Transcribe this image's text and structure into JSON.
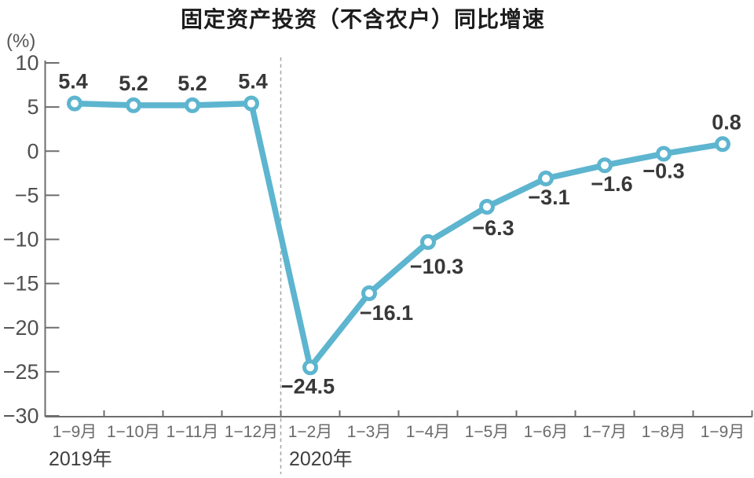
{
  "title": "固定资产投资（不含农户）同比增速",
  "unit_label": "(%)",
  "chart_data": {
    "type": "line",
    "title": "固定资产投资（不含农户）同比增速",
    "ylabel": "(%)",
    "categories": [
      "1−9月",
      "1−10月",
      "1−11月",
      "1−12月",
      "1−2月",
      "1−3月",
      "1−4月",
      "1−5月",
      "1−6月",
      "1−7月",
      "1−8月",
      "1−9月"
    ],
    "series": [
      {
        "name": "固定资产投资（不含农户）同比增速",
        "values": [
          5.4,
          5.2,
          5.2,
          5.4,
          -24.5,
          -16.1,
          -10.3,
          -6.3,
          -3.1,
          -1.6,
          -0.3,
          0.8
        ]
      }
    ],
    "data_labels": [
      "5.4",
      "5.2",
      "5.2",
      "5.4",
      "−24.5",
      "−16.1",
      "−10.3",
      "−6.3",
      "−3.1",
      "−1.6",
      "−0.3",
      "0.8"
    ],
    "y_ticks": [
      10,
      5,
      0,
      -5,
      -10,
      -15,
      -20,
      -25,
      -30
    ],
    "y_tick_labels": [
      "10",
      "5",
      "0",
      "−5",
      "−10",
      "−15",
      "−20",
      "−25",
      "−30"
    ],
    "ylim": [
      -30,
      10
    ],
    "year_groups": [
      {
        "label": "2019年",
        "start_index": 0,
        "end_index": 3
      },
      {
        "label": "2020年",
        "start_index": 4,
        "end_index": 11
      }
    ],
    "divider_after_index": 3,
    "grid": false,
    "legend": "none",
    "colors": {
      "line": "#5db5cf",
      "marker_fill": "#ffffff",
      "axis": "#6e6e6e",
      "divider": "#a8a8a8",
      "y_tick_text": "#4f4f4f",
      "x_tick_text": "#6a6a6a",
      "year_text": "#3f3f3f",
      "data_label_text": "#383838"
    }
  }
}
